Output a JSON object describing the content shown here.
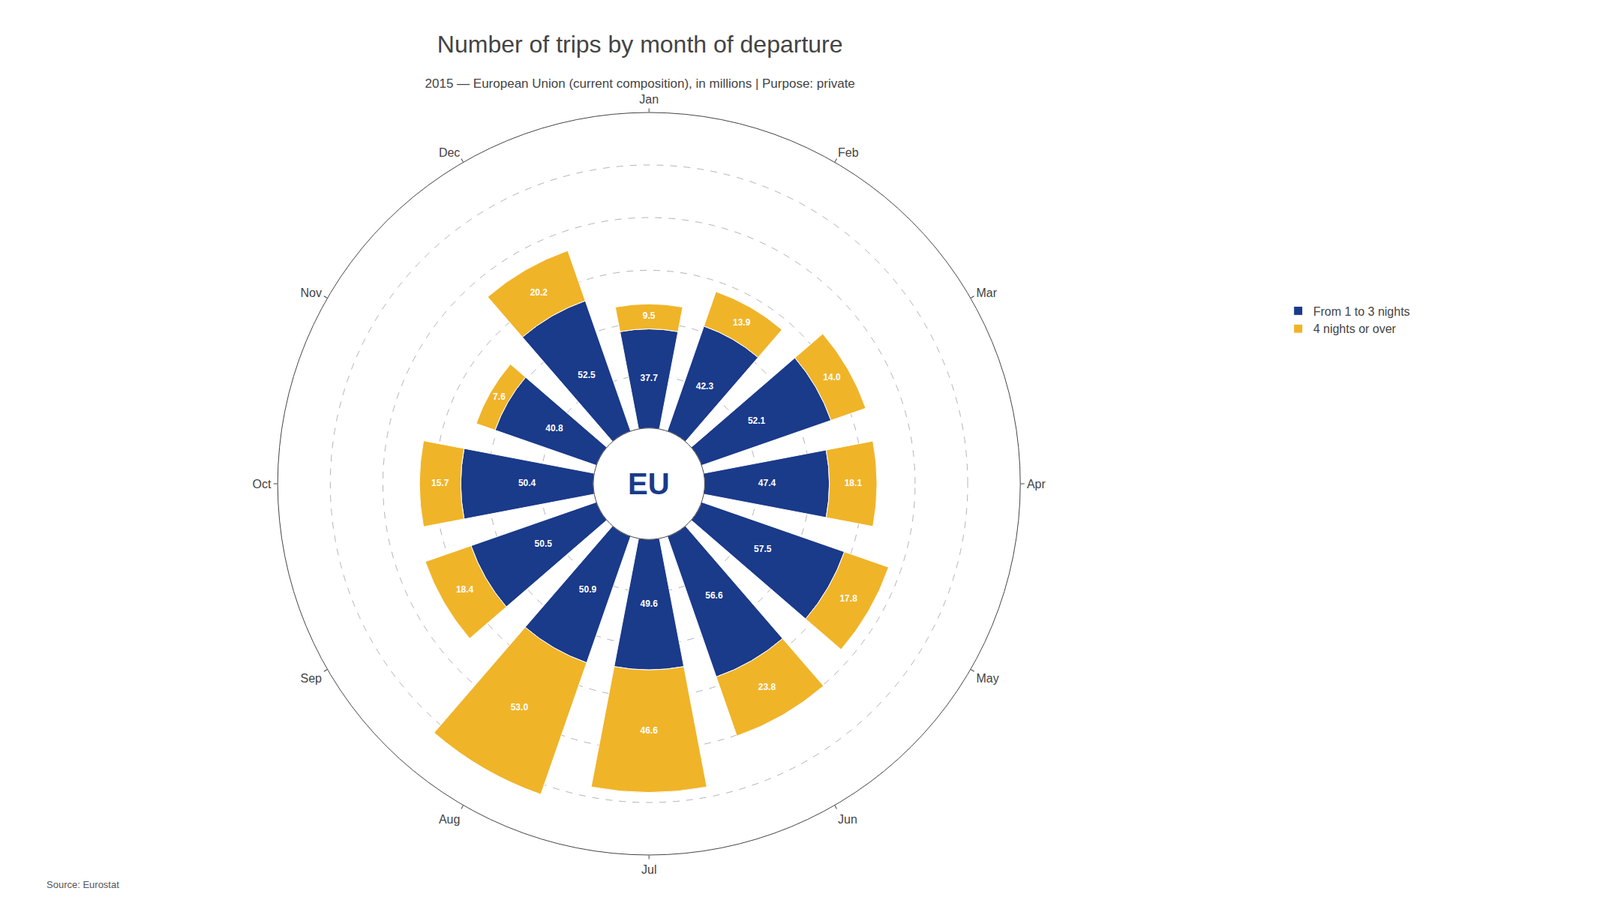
{
  "chart_data": {
    "type": "barpolar",
    "title": "Number of trips by month of departure",
    "subtitle": "2015 — European Union (current composition), in millions | Purpose: private",
    "center_label": "EU",
    "source": "Source: Eurostat",
    "categories": [
      "Jan",
      "Feb",
      "Mar",
      "Apr",
      "May",
      "Jun",
      "Jul",
      "Aug",
      "Sep",
      "Oct",
      "Nov",
      "Dec"
    ],
    "series": [
      {
        "name": "From 1 to 3 nights",
        "color": "#1a3a8a",
        "values": [
          37.7,
          42.3,
          52.1,
          47.4,
          57.5,
          56.6,
          49.6,
          50.9,
          50.5,
          50.4,
          40.8,
          52.5
        ]
      },
      {
        "name": "4 nights or over",
        "color": "#f0b429",
        "values": [
          9.5,
          13.9,
          14.0,
          18.1,
          17.8,
          23.8,
          46.6,
          53.0,
          18.4,
          15.7,
          7.6,
          20.2
        ],
        "value_labels": [
          "9.5",
          "13.9",
          "14.0",
          "18.1",
          "17.8",
          "23.8",
          "46.6",
          "53.0",
          "18.4",
          "15.7",
          "7.6",
          "20.2"
        ]
      }
    ],
    "stacked": true,
    "data_labels": true,
    "ylim": [
      0,
      120
    ],
    "yticks": [
      20,
      40,
      60,
      80,
      100,
      120
    ],
    "grid": true,
    "tick_labels": "x",
    "legend": "right"
  }
}
